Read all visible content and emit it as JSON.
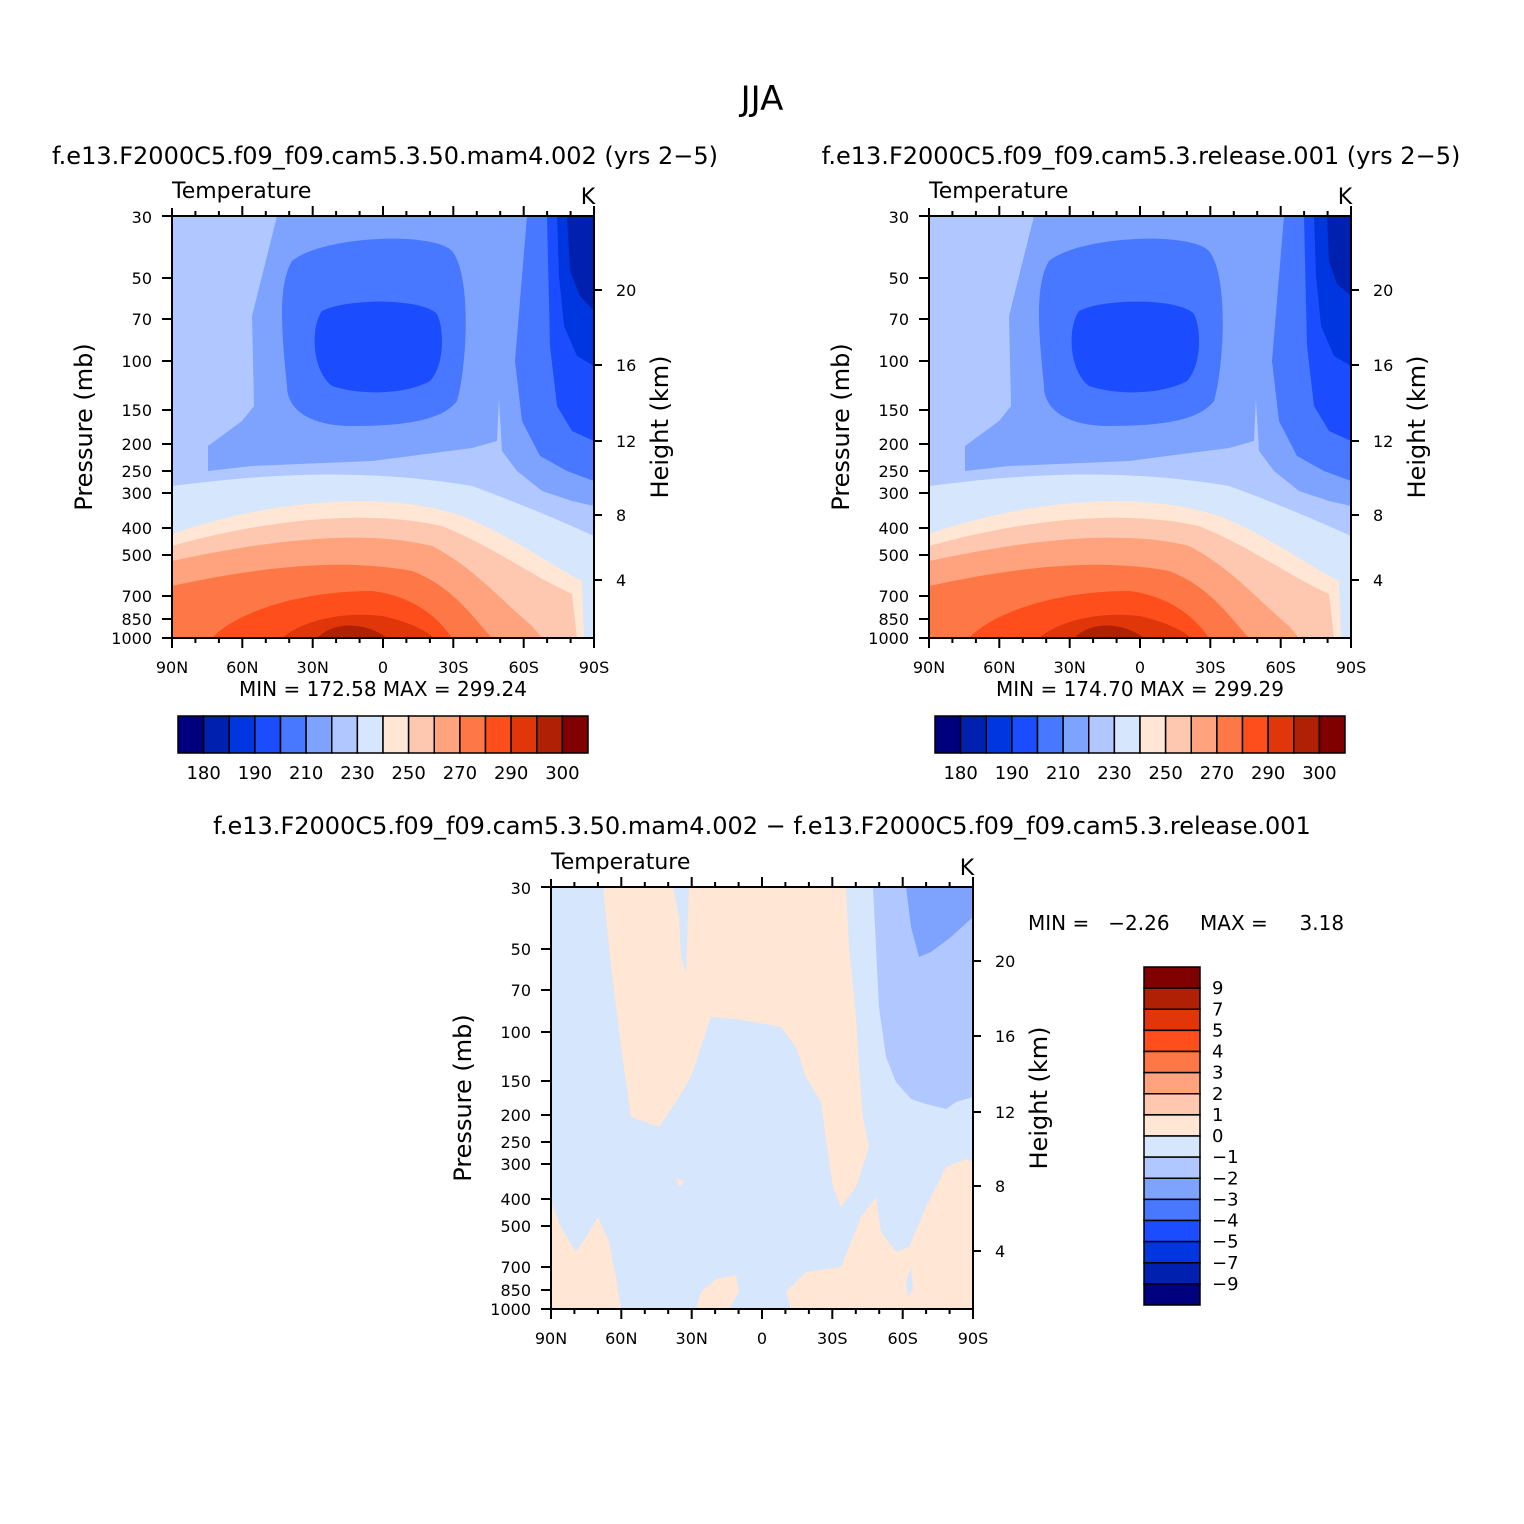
{
  "figure_title": "JJA",
  "panel_a": {
    "case_title": "f.e13.F2000C5.f09_f09.cam5.3.50.mam4.002 (yrs 2−5)",
    "variable": "Temperature",
    "units": "K",
    "stats": "MIN = 172.58   MAX = 299.24"
  },
  "panel_b": {
    "case_title": "f.e13.F2000C5.f09_f09.cam5.3.release.001 (yrs 2−5)",
    "variable": "Temperature",
    "units": "K",
    "stats": "MIN = 174.70   MAX = 299.29"
  },
  "panel_c": {
    "case_title": "f.e13.F2000C5.f09_f09.cam5.3.50.mam4.002 − f.e13.F2000C5.f09_f09.cam5.3.release.001",
    "variable": "Temperature",
    "units": "K",
    "stats_min": "MIN =   −2.26",
    "stats_max": "MAX =     3.18"
  },
  "axes": {
    "ylabel_left": "Pressure (mb)",
    "ylabel_right": "Height (km)",
    "pressure_ticks": [
      "30",
      "50",
      "70",
      "100",
      "150",
      "200",
      "250",
      "300",
      "400",
      "500",
      "700",
      "850",
      "1000"
    ],
    "height_ticks": [
      "20",
      "16",
      "12",
      "8",
      "4"
    ],
    "lat_ticks": [
      "90N",
      "60N",
      "30N",
      "0",
      "30S",
      "60S",
      "90S"
    ]
  },
  "colorbar_abs": {
    "colors": [
      "#00007f",
      "#0020b0",
      "#0036e0",
      "#1b4dff",
      "#4778ff",
      "#7ea3ff",
      "#b0c8ff",
      "#d5e6fd",
      "#ffe6d5",
      "#fec8b0",
      "#fea37e",
      "#fe7847",
      "#fd4e1b",
      "#e0360a",
      "#b02005",
      "#800000"
    ],
    "labels": [
      "180",
      "190",
      "210",
      "230",
      "250",
      "270",
      "290",
      "300"
    ]
  },
  "colorbar_diff": {
    "colors_top_to_bottom": [
      "#800000",
      "#b02005",
      "#e0360a",
      "#fd4e1b",
      "#fe7847",
      "#fea37e",
      "#fec8b0",
      "#ffe6d5",
      "#d5e6fd",
      "#b0c8ff",
      "#7ea3ff",
      "#4778ff",
      "#1b4dff",
      "#0036e0",
      "#0020b0",
      "#00007f"
    ],
    "labels": [
      "9",
      "7",
      "5",
      "4",
      "3",
      "2",
      "1",
      "0",
      "−1",
      "−2",
      "−3",
      "−4",
      "−5",
      "−7",
      "−9"
    ]
  },
  "chart_data": [
    {
      "type": "heatmap",
      "title": "f.e13.F2000C5.f09_f09.cam5.3.50.mam4.002 (yrs 2−5)",
      "subtitle": "Temperature",
      "xlabel": "",
      "ylabel": "Pressure (mb)",
      "ylabel_right": "Height (km)",
      "x": [
        "90N",
        "60N",
        "30N",
        "0",
        "30S",
        "60S",
        "90S"
      ],
      "y": [
        30,
        50,
        70,
        100,
        150,
        200,
        250,
        300,
        400,
        500,
        700,
        850,
        1000
      ],
      "zrange": [
        172.58,
        299.24
      ],
      "units": "K"
    },
    {
      "type": "heatmap",
      "title": "f.e13.F2000C5.f09_f09.cam5.3.release.001 (yrs 2−5)",
      "subtitle": "Temperature",
      "xlabel": "",
      "ylabel": "Pressure (mb)",
      "ylabel_right": "Height (km)",
      "x": [
        "90N",
        "60N",
        "30N",
        "0",
        "30S",
        "60S",
        "90S"
      ],
      "y": [
        30,
        50,
        70,
        100,
        150,
        200,
        250,
        300,
        400,
        500,
        700,
        850,
        1000
      ],
      "zrange": [
        174.7,
        299.29
      ],
      "units": "K"
    },
    {
      "type": "heatmap",
      "title": "f.e13.F2000C5.f09_f09.cam5.3.50.mam4.002 − f.e13.F2000C5.f09_f09.cam5.3.release.001",
      "subtitle": "Temperature",
      "xlabel": "",
      "ylabel": "Pressure (mb)",
      "ylabel_right": "Height (km)",
      "x": [
        "90N",
        "60N",
        "30N",
        "0",
        "30S",
        "60S",
        "90S"
      ],
      "y": [
        30,
        50,
        70,
        100,
        150,
        200,
        250,
        300,
        400,
        500,
        700,
        850,
        1000
      ],
      "zrange": [
        -2.26,
        3.18
      ],
      "units": "K"
    }
  ]
}
